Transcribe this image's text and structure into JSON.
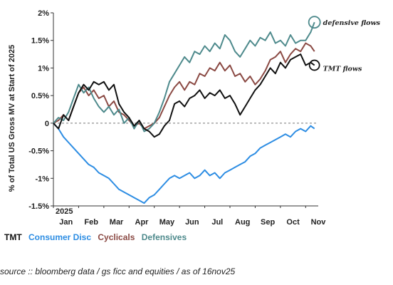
{
  "chart_data": {
    "type": "line",
    "ylabel": "% of Total US Gross MV at Start of 2025",
    "year_tag": "2025",
    "ylim": [
      -1.5,
      2.0
    ],
    "yticks": [
      2.0,
      1.5,
      1.0,
      0.5,
      0.0,
      -0.5,
      -1.0,
      -1.5
    ],
    "ytick_labels": [
      "2%",
      "1.5%",
      "1%",
      "0.5%",
      "0",
      "-0.5%",
      "-1%",
      "-1.5%"
    ],
    "xlim": [
      0,
      10.5
    ],
    "month_positions": [
      0,
      1,
      2,
      3,
      4,
      5,
      6,
      7,
      8,
      9,
      10
    ],
    "x_ticks": [
      "Jan",
      "Feb",
      "Mar",
      "Apr",
      "May",
      "Jun",
      "Jul",
      "Aug",
      "Sep",
      "Oct",
      "Nov"
    ],
    "zero_line": "dashed",
    "series": [
      {
        "name": "TMT",
        "color": "#111111",
        "x": [
          0,
          0.2,
          0.4,
          0.6,
          0.8,
          1.0,
          1.2,
          1.4,
          1.6,
          1.8,
          2.0,
          2.2,
          2.4,
          2.6,
          2.8,
          3.0,
          3.2,
          3.4,
          3.6,
          3.8,
          4.0,
          4.2,
          4.4,
          4.6,
          4.8,
          5.0,
          5.2,
          5.4,
          5.6,
          5.8,
          6.0,
          6.2,
          6.4,
          6.6,
          6.8,
          7.0,
          7.2,
          7.4,
          7.6,
          7.8,
          8.0,
          8.2,
          8.4,
          8.6,
          8.8,
          9.0,
          9.2,
          9.4,
          9.6,
          9.8,
          10.0,
          10.2,
          10.35
        ],
        "y": [
          0.0,
          -0.1,
          0.15,
          0.05,
          0.3,
          0.55,
          0.7,
          0.6,
          0.75,
          0.7,
          0.75,
          0.6,
          0.7,
          0.35,
          0.2,
          0.1,
          -0.05,
          0.05,
          -0.1,
          -0.15,
          -0.25,
          -0.2,
          -0.05,
          0.05,
          0.35,
          0.4,
          0.3,
          0.45,
          0.5,
          0.6,
          0.45,
          0.55,
          0.5,
          0.6,
          0.45,
          0.5,
          0.35,
          0.15,
          0.3,
          0.45,
          0.6,
          0.7,
          0.85,
          1.0,
          0.9,
          1.1,
          1.0,
          1.15,
          1.2,
          1.25,
          1.05,
          1.1,
          1.05
        ]
      },
      {
        "name": "Consumer Disc",
        "color": "#2d8de3",
        "x": [
          0,
          0.2,
          0.4,
          0.6,
          0.8,
          1.0,
          1.2,
          1.4,
          1.6,
          1.8,
          2.0,
          2.2,
          2.4,
          2.6,
          2.8,
          3.0,
          3.2,
          3.4,
          3.6,
          3.8,
          4.0,
          4.2,
          4.4,
          4.6,
          4.8,
          5.0,
          5.2,
          5.4,
          5.6,
          5.8,
          6.0,
          6.2,
          6.4,
          6.6,
          6.8,
          7.0,
          7.2,
          7.4,
          7.6,
          7.8,
          8.0,
          8.2,
          8.4,
          8.6,
          8.8,
          9.0,
          9.2,
          9.4,
          9.6,
          9.8,
          10.0,
          10.2,
          10.35
        ],
        "y": [
          0.0,
          -0.1,
          -0.25,
          -0.35,
          -0.45,
          -0.55,
          -0.65,
          -0.75,
          -0.8,
          -0.9,
          -0.95,
          -1.0,
          -1.1,
          -1.2,
          -1.25,
          -1.3,
          -1.35,
          -1.4,
          -1.45,
          -1.35,
          -1.3,
          -1.2,
          -1.1,
          -1.0,
          -0.95,
          -1.0,
          -0.95,
          -0.9,
          -1.0,
          -0.95,
          -0.85,
          -0.95,
          -0.9,
          -1.0,
          -0.9,
          -0.85,
          -0.8,
          -0.75,
          -0.7,
          -0.6,
          -0.55,
          -0.45,
          -0.4,
          -0.35,
          -0.3,
          -0.25,
          -0.2,
          -0.25,
          -0.15,
          -0.1,
          -0.15,
          -0.05,
          -0.1
        ]
      },
      {
        "name": "Cyclicals",
        "color": "#8b4a44",
        "x": [
          0,
          0.2,
          0.4,
          0.6,
          0.8,
          1.0,
          1.2,
          1.4,
          1.6,
          1.8,
          2.0,
          2.2,
          2.4,
          2.6,
          2.8,
          3.0,
          3.2,
          3.4,
          3.6,
          3.8,
          4.0,
          4.2,
          4.4,
          4.6,
          4.8,
          5.0,
          5.2,
          5.4,
          5.6,
          5.8,
          6.0,
          6.2,
          6.4,
          6.6,
          6.8,
          7.0,
          7.2,
          7.4,
          7.6,
          7.8,
          8.0,
          8.2,
          8.4,
          8.6,
          8.8,
          9.0,
          9.2,
          9.4,
          9.6,
          9.8,
          10.0,
          10.2,
          10.35
        ],
        "y": [
          0.0,
          0.05,
          0.15,
          0.05,
          0.3,
          0.55,
          0.65,
          0.5,
          0.6,
          0.45,
          0.5,
          0.3,
          0.4,
          0.2,
          0.15,
          0.05,
          -0.05,
          0.0,
          -0.1,
          -0.05,
          0.0,
          0.1,
          0.3,
          0.5,
          0.65,
          0.75,
          0.6,
          0.75,
          0.7,
          0.9,
          0.85,
          1.0,
          0.95,
          1.1,
          0.95,
          1.05,
          0.85,
          0.9,
          0.75,
          0.85,
          0.7,
          0.8,
          0.95,
          1.15,
          1.2,
          1.3,
          1.1,
          1.25,
          1.35,
          1.3,
          1.45,
          1.4,
          1.3
        ]
      },
      {
        "name": "Defensives",
        "color": "#4e8a8c",
        "x": [
          0,
          0.2,
          0.4,
          0.6,
          0.8,
          1.0,
          1.2,
          1.4,
          1.6,
          1.8,
          2.0,
          2.2,
          2.4,
          2.6,
          2.8,
          3.0,
          3.2,
          3.4,
          3.6,
          3.8,
          4.0,
          4.2,
          4.4,
          4.6,
          4.8,
          5.0,
          5.2,
          5.4,
          5.6,
          5.8,
          6.0,
          6.2,
          6.4,
          6.6,
          6.8,
          7.0,
          7.2,
          7.4,
          7.6,
          7.8,
          8.0,
          8.2,
          8.4,
          8.6,
          8.8,
          9.0,
          9.2,
          9.4,
          9.6,
          9.8,
          10.0,
          10.2,
          10.35
        ],
        "y": [
          0.0,
          0.1,
          0.05,
          0.2,
          0.45,
          0.7,
          0.55,
          0.65,
          0.45,
          0.3,
          0.2,
          0.3,
          0.15,
          0.25,
          0.0,
          0.1,
          -0.1,
          0.05,
          -0.15,
          -0.1,
          0.0,
          0.2,
          0.45,
          0.75,
          0.9,
          1.05,
          1.2,
          1.1,
          1.3,
          1.25,
          1.4,
          1.3,
          1.45,
          1.35,
          1.6,
          1.5,
          1.3,
          1.2,
          1.35,
          1.5,
          1.4,
          1.55,
          1.5,
          1.65,
          1.45,
          1.5,
          1.4,
          1.6,
          1.45,
          1.5,
          1.5,
          1.65,
          1.83
        ]
      }
    ],
    "annotations": [
      {
        "text": "defensive flows",
        "series": "Defensives"
      },
      {
        "text": "TMT flows",
        "series": "TMT"
      }
    ]
  },
  "legend": {
    "tmt": "TMT",
    "consumer_disc": "Consumer Disc",
    "cyclicals": "Cyclicals",
    "defensives": "Defensives",
    "colors": {
      "tmt": "#111111",
      "consumer_disc": "#2d8de3",
      "cyclicals": "#8b4a44",
      "defensives": "#4e8a8c"
    }
  },
  "source": "source :: bloomberg data / gs ficc and equities / as of 16nov25"
}
